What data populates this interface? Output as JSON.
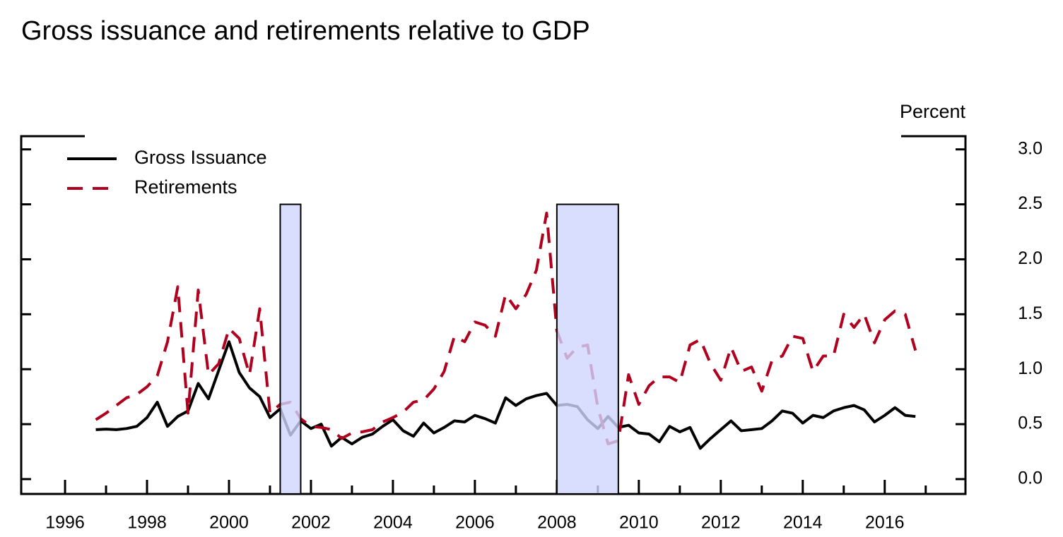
{
  "chart_data": {
    "type": "line",
    "title": "Gross issuance and retirements relative to GDP",
    "y_label": "Percent",
    "x": [
      1996.75,
      1997,
      1997.25,
      1997.5,
      1997.75,
      1998,
      1998.25,
      1998.5,
      1998.75,
      1999,
      1999.25,
      1999.5,
      1999.75,
      2000,
      2000.25,
      2000.5,
      2000.75,
      2001,
      2001.25,
      2001.5,
      2001.75,
      2002,
      2002.25,
      2002.5,
      2002.75,
      2003,
      2003.25,
      2003.5,
      2003.75,
      2004,
      2004.25,
      2004.5,
      2004.75,
      2005,
      2005.25,
      2005.5,
      2005.75,
      2006,
      2006.25,
      2006.5,
      2006.75,
      2007,
      2007.25,
      2007.5,
      2007.75,
      2008,
      2008.25,
      2008.5,
      2008.75,
      2009,
      2009.25,
      2009.5,
      2009.75,
      2010,
      2010.25,
      2010.5,
      2010.75,
      2011,
      2011.25,
      2011.5,
      2011.75,
      2012,
      2012.25,
      2012.5,
      2012.75,
      2013,
      2013.25,
      2013.5,
      2013.75,
      2014,
      2014.25,
      2014.5,
      2014.75,
      2015,
      2015.25,
      2015.5,
      2015.75,
      2016,
      2016.25,
      2016.5,
      2016.75
    ],
    "series": [
      {
        "name": "Gross Issuance",
        "color": "#000000",
        "dash": "solid",
        "values": [
          0.45,
          0.455,
          0.45,
          0.46,
          0.48,
          0.56,
          0.7,
          0.48,
          0.57,
          0.62,
          0.87,
          0.73,
          0.99,
          1.25,
          0.97,
          0.83,
          0.75,
          0.56,
          0.64,
          0.4,
          0.53,
          0.46,
          0.5,
          0.3,
          0.38,
          0.32,
          0.38,
          0.41,
          0.48,
          0.54,
          0.44,
          0.39,
          0.51,
          0.42,
          0.47,
          0.53,
          0.52,
          0.58,
          0.55,
          0.51,
          0.74,
          0.67,
          0.73,
          0.76,
          0.78,
          0.67,
          0.68,
          0.66,
          0.54,
          0.46,
          0.57,
          0.47,
          0.49,
          0.42,
          0.41,
          0.34,
          0.48,
          0.43,
          0.47,
          0.28,
          0.37,
          0.45,
          0.53,
          0.44,
          0.45,
          0.46,
          0.53,
          0.62,
          0.6,
          0.51,
          0.58,
          0.56,
          0.62,
          0.65,
          0.67,
          0.63,
          0.52,
          0.58,
          0.65,
          0.58,
          0.57
        ]
      },
      {
        "name": "Retirements",
        "color": "#b0001e",
        "dash": "dashed",
        "values": [
          0.54,
          0.6,
          0.67,
          0.74,
          0.77,
          0.84,
          0.94,
          1.25,
          1.75,
          0.6,
          1.72,
          0.95,
          1.05,
          1.37,
          1.28,
          0.95,
          1.55,
          0.6,
          0.68,
          0.7,
          0.55,
          0.48,
          0.47,
          0.45,
          0.37,
          0.42,
          0.43,
          0.45,
          0.52,
          0.56,
          0.61,
          0.7,
          0.72,
          0.82,
          0.98,
          1.3,
          1.25,
          1.43,
          1.4,
          1.3,
          1.68,
          1.55,
          1.68,
          1.9,
          2.42,
          1.35,
          1.1,
          1.2,
          1.22,
          0.65,
          0.32,
          0.35,
          0.95,
          0.68,
          0.85,
          0.93,
          0.93,
          0.88,
          1.22,
          1.27,
          1.05,
          0.9,
          1.2,
          0.98,
          1.02,
          0.8,
          1.08,
          1.12,
          1.3,
          1.28,
          0.98,
          1.12,
          1.12,
          1.5,
          1.38,
          1.5,
          1.24,
          1.45,
          1.53,
          1.5,
          1.17
        ]
      }
    ],
    "shading": [
      {
        "x": [
          2001.25,
          2001.75
        ]
      },
      {
        "x": [
          2008.0,
          2009.5
        ]
      }
    ],
    "shading_top": 2.5,
    "shading_color": "#cfd6ff",
    "xlim": [
      1994.93,
      2017.97
    ],
    "xticks": [
      1996,
      1998,
      2000,
      2002,
      2004,
      2006,
      2008,
      2010,
      2012,
      2014,
      2016
    ],
    "xticks_minor": [
      1997,
      1999,
      2001,
      2003,
      2005,
      2007,
      2009,
      2011,
      2013,
      2015,
      2017
    ],
    "ylim": [
      -0.135,
      3.12
    ],
    "yticks": [
      {
        "value": 0,
        "label": "0.0"
      },
      0.5,
      {
        "value": 1,
        "label": "1.0"
      },
      1.5,
      {
        "value": 2,
        "label": "2.0"
      },
      2.5,
      {
        "value": 3,
        "label": "3.0"
      }
    ],
    "y_axis_side": "right",
    "legend": "upper left",
    "grid": false
  }
}
